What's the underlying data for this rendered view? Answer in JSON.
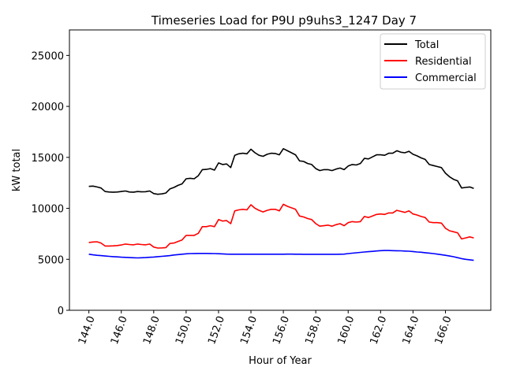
{
  "chart_data": {
    "type": "line",
    "title": "Timeseries Load for P9U p9uhs3_1247  Day 7",
    "xlabel": "Hour of Year",
    "ylabel": "kW total",
    "xlim": [
      142.8,
      168.8
    ],
    "ylim": [
      0,
      27500
    ],
    "xticks": [
      144,
      146,
      148,
      150,
      152,
      154,
      156,
      158,
      160,
      162,
      164,
      166
    ],
    "xtick_labels": [
      "144.0",
      "146.0",
      "148.0",
      "150.0",
      "152.0",
      "154.0",
      "156.0",
      "158.0",
      "160.0",
      "162.0",
      "164.0",
      "166.0"
    ],
    "yticks": [
      0,
      5000,
      10000,
      15000,
      20000,
      25000
    ],
    "ytick_labels": [
      "0",
      "5000",
      "10000",
      "15000",
      "20000",
      "25000"
    ],
    "grid": false,
    "legend_position": "top-right",
    "x": [
      144.0,
      144.25,
      144.5,
      144.75,
      145.0,
      145.25,
      145.5,
      145.75,
      146.0,
      146.25,
      146.5,
      146.75,
      147.0,
      147.25,
      147.5,
      147.75,
      148.0,
      148.25,
      148.5,
      148.75,
      149.0,
      149.25,
      149.5,
      149.75,
      150.0,
      150.25,
      150.5,
      150.75,
      151.0,
      151.25,
      151.5,
      151.75,
      152.0,
      152.25,
      152.5,
      152.75,
      153.0,
      153.25,
      153.5,
      153.75,
      154.0,
      154.25,
      154.5,
      154.75,
      155.0,
      155.25,
      155.5,
      155.75,
      156.0,
      156.25,
      156.5,
      156.75,
      157.0,
      157.25,
      157.5,
      157.75,
      158.0,
      158.25,
      158.5,
      158.75,
      159.0,
      159.25,
      159.5,
      159.75,
      160.0,
      160.25,
      160.5,
      160.75,
      161.0,
      161.25,
      161.5,
      161.75,
      162.0,
      162.25,
      162.5,
      162.75,
      163.0,
      163.25,
      163.5,
      163.75,
      164.0,
      164.25,
      164.5,
      164.75,
      165.0,
      165.25,
      165.5,
      165.75,
      166.0,
      166.25,
      166.5,
      166.75,
      167.0,
      167.25,
      167.5,
      167.75
    ],
    "series": [
      {
        "name": "Total",
        "color": "#000000",
        "values": [
          12150,
          12180,
          12100,
          12000,
          11650,
          11600,
          11580,
          11600,
          11650,
          11700,
          11600,
          11580,
          11650,
          11620,
          11630,
          11700,
          11450,
          11380,
          11420,
          11500,
          11900,
          12050,
          12250,
          12400,
          12900,
          12950,
          12900,
          13200,
          13800,
          13820,
          13900,
          13750,
          14450,
          14300,
          14350,
          14000,
          15200,
          15350,
          15400,
          15350,
          15800,
          15450,
          15200,
          15100,
          15300,
          15400,
          15380,
          15250,
          15850,
          15650,
          15450,
          15250,
          14650,
          14600,
          14400,
          14300,
          13900,
          13700,
          13800,
          13800,
          13700,
          13850,
          13950,
          13800,
          14150,
          14300,
          14250,
          14400,
          14900,
          14850,
          15050,
          15250,
          15250,
          15200,
          15400,
          15400,
          15650,
          15500,
          15450,
          15600,
          15300,
          15150,
          14950,
          14800,
          14300,
          14200,
          14100,
          14000,
          13450,
          13100,
          12850,
          12700,
          12000,
          12050,
          12100,
          11950
        ]
      },
      {
        "name": "Residential",
        "color": "#ff0000",
        "values": [
          6650,
          6700,
          6720,
          6600,
          6300,
          6300,
          6320,
          6350,
          6400,
          6500,
          6450,
          6420,
          6500,
          6450,
          6420,
          6500,
          6200,
          6100,
          6120,
          6150,
          6550,
          6600,
          6750,
          6900,
          7350,
          7350,
          7350,
          7550,
          8200,
          8200,
          8300,
          8200,
          8900,
          8750,
          8800,
          8500,
          9750,
          9850,
          9900,
          9850,
          10350,
          10000,
          9800,
          9650,
          9800,
          9900,
          9900,
          9750,
          10400,
          10200,
          10050,
          9900,
          9250,
          9150,
          9000,
          8900,
          8500,
          8250,
          8300,
          8350,
          8250,
          8400,
          8500,
          8300,
          8600,
          8700,
          8650,
          8700,
          9200,
          9100,
          9250,
          9400,
          9450,
          9400,
          9550,
          9550,
          9800,
          9700,
          9600,
          9750,
          9450,
          9350,
          9200,
          9100,
          8650,
          8600,
          8600,
          8550,
          8050,
          7800,
          7700,
          7600,
          7000,
          7100,
          7200,
          7100
        ]
      },
      {
        "name": "Commercial",
        "color": "#0000ff",
        "values": [
          5500,
          5440,
          5390,
          5360,
          5320,
          5290,
          5260,
          5240,
          5210,
          5190,
          5170,
          5150,
          5140,
          5150,
          5170,
          5200,
          5220,
          5260,
          5290,
          5320,
          5360,
          5420,
          5460,
          5500,
          5540,
          5560,
          5570,
          5580,
          5580,
          5580,
          5570,
          5560,
          5550,
          5530,
          5510,
          5500,
          5500,
          5500,
          5500,
          5500,
          5500,
          5500,
          5500,
          5500,
          5500,
          5500,
          5500,
          5500,
          5500,
          5510,
          5510,
          5500,
          5500,
          5490,
          5490,
          5490,
          5490,
          5490,
          5490,
          5490,
          5490,
          5490,
          5500,
          5510,
          5560,
          5600,
          5640,
          5680,
          5720,
          5750,
          5780,
          5820,
          5850,
          5860,
          5860,
          5850,
          5840,
          5830,
          5810,
          5790,
          5760,
          5720,
          5690,
          5650,
          5610,
          5560,
          5510,
          5450,
          5390,
          5320,
          5250,
          5160,
          5070,
          5000,
          4950,
          4900
        ]
      }
    ]
  }
}
